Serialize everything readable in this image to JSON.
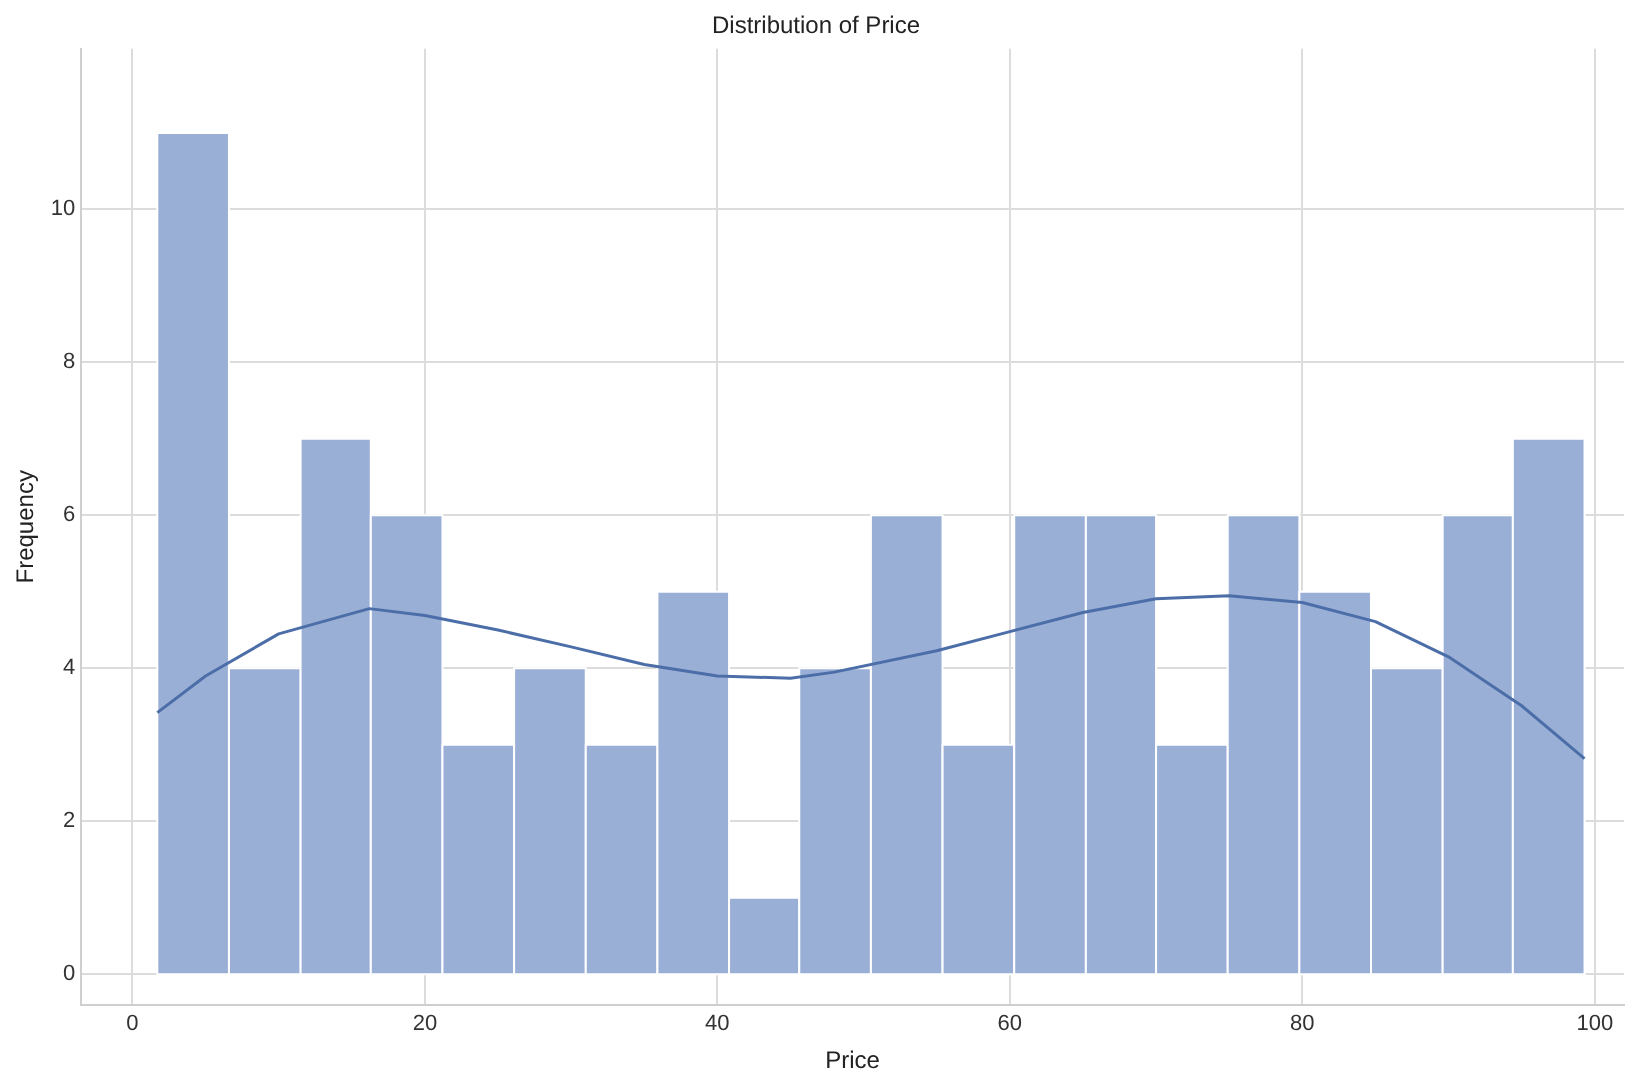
{
  "chart_data": {
    "type": "histogram",
    "title": "Distribution of Price",
    "xlabel": "Price",
    "ylabel": "Frequency",
    "bins": [
      1.7,
      6.6,
      11.5,
      16.3,
      21.2,
      26.1,
      31.0,
      35.9,
      40.8,
      45.6,
      50.5,
      55.4,
      60.3,
      65.2,
      70.0,
      74.9,
      79.8,
      84.7,
      89.6,
      94.4,
      99.3
    ],
    "series": [
      {
        "color": "#9aafd6",
        "values": [
          11,
          4,
          7,
          6,
          3,
          4,
          3,
          5,
          1,
          4,
          6,
          3,
          6,
          6,
          3,
          6,
          5,
          4,
          6,
          7
        ]
      },
      {
        "type": "line",
        "color": "#4c6ea8",
        "x": [
          1.7,
          5,
          10,
          16.2,
          20,
          25,
          30,
          35,
          40,
          45,
          48,
          55,
          60,
          65,
          70,
          75,
          80,
          85,
          90,
          95,
          99.3
        ],
        "values": [
          3.42,
          3.9,
          4.45,
          4.78,
          4.69,
          4.5,
          4.28,
          4.05,
          3.9,
          3.87,
          3.95,
          4.23,
          4.48,
          4.73,
          4.91,
          4.95,
          4.86,
          4.61,
          4.15,
          3.51,
          2.82
        ]
      }
    ],
    "xlim": [
      -3.5,
      102
    ],
    "xticks": [
      0,
      20,
      40,
      60,
      80,
      100
    ],
    "ylim": [
      -0.4,
      12.1
    ],
    "yticks": [
      0,
      2,
      4,
      6,
      8,
      10
    ],
    "grid": true,
    "legend": false
  }
}
